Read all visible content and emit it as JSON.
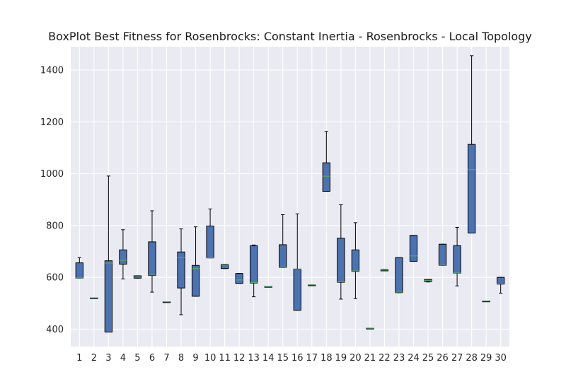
{
  "chart_data": {
    "type": "boxplot",
    "title": "BoxPlot Best Fitness for Rosenbrocks: Constant Inertia - Rosenbrocks - Local Topology",
    "xlabel": "",
    "ylabel": "",
    "ylim": [
      333,
      1490
    ],
    "yticks": [
      400,
      600,
      800,
      1000,
      1200,
      1400
    ],
    "grid": true,
    "categories": [
      "1",
      "2",
      "3",
      "4",
      "5",
      "6",
      "7",
      "8",
      "9",
      "10",
      "11",
      "12",
      "13",
      "14",
      "15",
      "16",
      "17",
      "18",
      "19",
      "20",
      "21",
      "22",
      "23",
      "24",
      "25",
      "26",
      "27",
      "28",
      "29",
      "30"
    ],
    "boxes": [
      {
        "label": "1",
        "whisker_low": 597,
        "q1": 597,
        "median": 598,
        "q3": 656,
        "whisker_high": 676
      },
      {
        "label": "2",
        "whisker_low": 521,
        "q1": 521,
        "median": 521,
        "q3": 521,
        "whisker_high": 521
      },
      {
        "label": "3",
        "whisker_low": 389,
        "q1": 389,
        "median": 655,
        "q3": 664,
        "whisker_high": 991
      },
      {
        "label": "4",
        "whisker_low": 594,
        "q1": 651,
        "median": 666,
        "q3": 706,
        "whisker_high": 784
      },
      {
        "label": "5",
        "whisker_low": 597,
        "q1": 597,
        "median": 601,
        "q3": 606,
        "whisker_high": 606
      },
      {
        "label": "6",
        "whisker_low": 543,
        "q1": 607,
        "median": 609,
        "q3": 737,
        "whisker_high": 857
      },
      {
        "label": "7",
        "whisker_low": 506,
        "q1": 506,
        "median": 506,
        "q3": 506,
        "whisker_high": 506
      },
      {
        "label": "8",
        "whisker_low": 456,
        "q1": 559,
        "median": 676,
        "q3": 698,
        "whisker_high": 787
      },
      {
        "label": "9",
        "whisker_low": 527,
        "q1": 527,
        "median": 634,
        "q3": 646,
        "whisker_high": 795
      },
      {
        "label": "10",
        "whisker_low": 675,
        "q1": 675,
        "median": 676,
        "q3": 798,
        "whisker_high": 864
      },
      {
        "label": "11",
        "whisker_low": 634,
        "q1": 634,
        "median": 648,
        "q3": 650,
        "whisker_high": 650
      },
      {
        "label": "12",
        "whisker_low": 577,
        "q1": 577,
        "median": 590,
        "q3": 615,
        "whisker_high": 615
      },
      {
        "label": "13",
        "whisker_low": 525,
        "q1": 578,
        "median": 580,
        "q3": 722,
        "whisker_high": 725
      },
      {
        "label": "14",
        "whisker_low": 565,
        "q1": 565,
        "median": 565,
        "q3": 565,
        "whisker_high": 565
      },
      {
        "label": "15",
        "whisker_low": 638,
        "q1": 638,
        "median": 639,
        "q3": 726,
        "whisker_high": 842
      },
      {
        "label": "16",
        "whisker_low": 473,
        "q1": 473,
        "median": 630,
        "q3": 632,
        "whisker_high": 845
      },
      {
        "label": "17",
        "whisker_low": 571,
        "q1": 571,
        "median": 571,
        "q3": 571,
        "whisker_high": 571
      },
      {
        "label": "18",
        "whisker_low": 932,
        "q1": 932,
        "median": 990,
        "q3": 1042,
        "whisker_high": 1163
      },
      {
        "label": "19",
        "whisker_low": 516,
        "q1": 581,
        "median": 583,
        "q3": 751,
        "whisker_high": 880
      },
      {
        "label": "20",
        "whisker_low": 518,
        "q1": 623,
        "median": 625,
        "q3": 706,
        "whisker_high": 811
      },
      {
        "label": "21",
        "whisker_low": 404,
        "q1": 404,
        "median": 404,
        "q3": 404,
        "whisker_high": 404
      },
      {
        "label": "22",
        "whisker_low": 625,
        "q1": 625,
        "median": 628,
        "q3": 630,
        "whisker_high": 630
      },
      {
        "label": "23",
        "whisker_low": 541,
        "q1": 541,
        "median": 543,
        "q3": 676,
        "whisker_high": 676
      },
      {
        "label": "24",
        "whisker_low": 662,
        "q1": 662,
        "median": 683,
        "q3": 762,
        "whisker_high": 762
      },
      {
        "label": "25",
        "whisker_low": 582,
        "q1": 584,
        "median": 588,
        "q3": 592,
        "whisker_high": 592
      },
      {
        "label": "26",
        "whisker_low": 646,
        "q1": 646,
        "median": 647,
        "q3": 728,
        "whisker_high": 728
      },
      {
        "label": "27",
        "whisker_low": 567,
        "q1": 616,
        "median": 617,
        "q3": 722,
        "whisker_high": 793
      },
      {
        "label": "28",
        "whisker_low": 771,
        "q1": 771,
        "median": 1016,
        "q3": 1113,
        "whisker_high": 1455
      },
      {
        "label": "29",
        "whisker_low": 509,
        "q1": 509,
        "median": 509,
        "q3": 509,
        "whisker_high": 509
      },
      {
        "label": "30",
        "whisker_low": 539,
        "q1": 574,
        "median": 577,
        "q3": 600,
        "whisker_high": 600
      }
    ],
    "colors": {
      "box_fill": "#4c72b0",
      "box_edge": "#000000",
      "median": "#55a868",
      "whisker": "#000000",
      "axes_bg": "#eaeaf2",
      "grid": "#ffffff"
    }
  }
}
